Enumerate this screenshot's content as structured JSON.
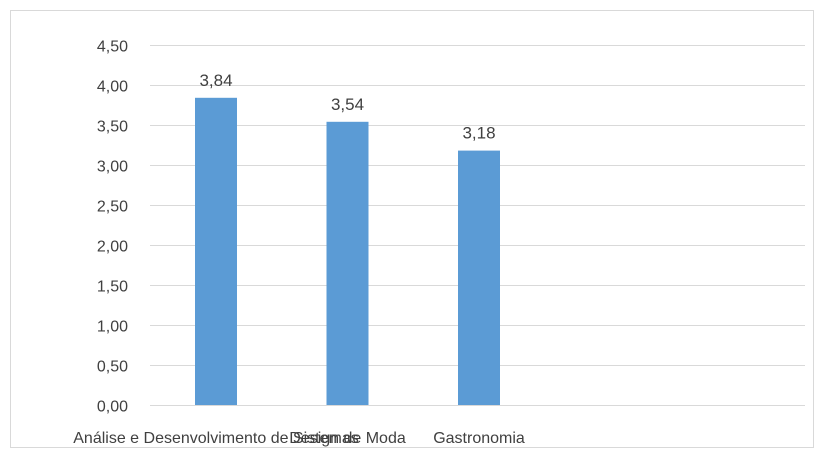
{
  "chart_data": {
    "type": "bar",
    "categories": [
      "Análise e Desenvolvimento de Sistemas",
      "Design de Moda",
      "Gastronomia"
    ],
    "values": [
      3.84,
      3.54,
      3.18
    ],
    "value_labels": [
      "3,84",
      "3,54",
      "3,18"
    ],
    "ylim": [
      0,
      4.5
    ],
    "yticks": [
      0,
      0.5,
      1.0,
      1.5,
      2.0,
      2.5,
      3.0,
      3.5,
      4.0,
      4.5
    ],
    "ytick_labels": [
      "0,00",
      "0,50",
      "1,00",
      "1,50",
      "2,00",
      "2,50",
      "3,00",
      "3,50",
      "4,00",
      "4,50"
    ],
    "grid": true,
    "bar_color": "#5b9bd5",
    "grid_color": "#d9d9d9",
    "title": "",
    "xlabel": "",
    "ylabel": ""
  }
}
